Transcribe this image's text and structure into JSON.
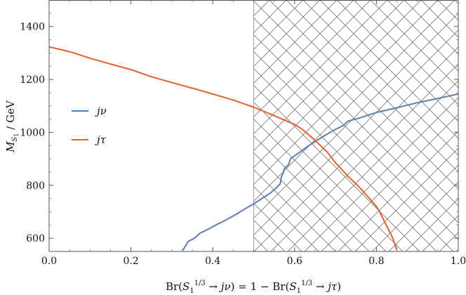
{
  "chart_data": {
    "type": "line",
    "title": "",
    "xlabel": "Br(S₁¹ᐟ³ → jν) = 1 − Br(S₁¹ᐟ³ → jτ)",
    "ylabel": "M_S₁ / GeV",
    "xlim": [
      0.0,
      1.0
    ],
    "ylim": [
      550,
      1500
    ],
    "x_ticks": [
      0.0,
      0.2,
      0.4,
      0.6,
      0.8,
      1.0
    ],
    "x_tick_labels": [
      "0.0",
      "0.2",
      "0.4",
      "0.6",
      "0.8",
      "1.0"
    ],
    "y_ticks": [
      600,
      800,
      1000,
      1200,
      1400
    ],
    "y_tick_labels": [
      "600",
      "800",
      "1000",
      "1200",
      "1400"
    ],
    "excluded_region": {
      "x_from": 0.5,
      "x_to": 1.0,
      "fill": "crosshatch"
    },
    "legend_position": "left",
    "series": [
      {
        "name": "jν",
        "color": "#5b7fb0",
        "points": [
          [
            0.325,
            553
          ],
          [
            0.33,
            562
          ],
          [
            0.34,
            588
          ],
          [
            0.355,
            600
          ],
          [
            0.37,
            620
          ],
          [
            0.39,
            635
          ],
          [
            0.41,
            652
          ],
          [
            0.43,
            667
          ],
          [
            0.46,
            693
          ],
          [
            0.48,
            712
          ],
          [
            0.5,
            730
          ],
          [
            0.52,
            750
          ],
          [
            0.54,
            770
          ],
          [
            0.555,
            790
          ],
          [
            0.565,
            806
          ],
          [
            0.568,
            835
          ],
          [
            0.572,
            845
          ],
          [
            0.575,
            863
          ],
          [
            0.585,
            878
          ],
          [
            0.59,
            900
          ],
          [
            0.61,
            922
          ],
          [
            0.63,
            945
          ],
          [
            0.66,
            975
          ],
          [
            0.69,
            1003
          ],
          [
            0.72,
            1027
          ],
          [
            0.73,
            1042
          ],
          [
            0.76,
            1055
          ],
          [
            0.8,
            1075
          ],
          [
            0.85,
            1093
          ],
          [
            0.9,
            1112
          ],
          [
            0.95,
            1128
          ],
          [
            1.0,
            1145
          ]
        ]
      },
      {
        "name": "jτ",
        "color": "#e3612f",
        "points": [
          [
            0.0,
            1323
          ],
          [
            0.05,
            1305
          ],
          [
            0.1,
            1280
          ],
          [
            0.15,
            1258
          ],
          [
            0.2,
            1237
          ],
          [
            0.25,
            1210
          ],
          [
            0.3,
            1188
          ],
          [
            0.35,
            1167
          ],
          [
            0.4,
            1145
          ],
          [
            0.45,
            1122
          ],
          [
            0.5,
            1095
          ],
          [
            0.55,
            1063
          ],
          [
            0.6,
            1030
          ],
          [
            0.62,
            1010
          ],
          [
            0.65,
            970
          ],
          [
            0.68,
            925
          ],
          [
            0.7,
            885
          ],
          [
            0.73,
            835
          ],
          [
            0.76,
            790
          ],
          [
            0.8,
            720
          ],
          [
            0.81,
            693
          ],
          [
            0.84,
            600
          ],
          [
            0.85,
            555
          ]
        ]
      }
    ]
  }
}
